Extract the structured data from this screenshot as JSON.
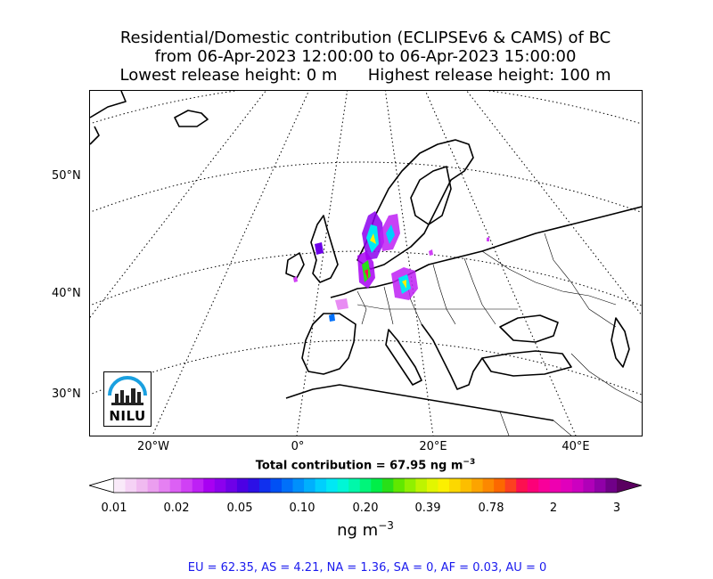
{
  "title": {
    "line1": "Residential/Domestic contribution (ECLIPSEv6 & CAMS) of BC",
    "line2": "from 06-Apr-2023 12:00:00 to 06-Apr-2023 15:00:00",
    "line3": "Lowest release height: 0 m      Highest release height: 100 m"
  },
  "map": {
    "lat_labels": [
      "50°N",
      "40°N",
      "30°N"
    ],
    "lon_labels": [
      "20°W",
      "0°",
      "20°E",
      "40°E"
    ],
    "logo_text": "NILU",
    "coastline_color": "#000000",
    "graticule_style": "dotted"
  },
  "total": {
    "label": "Total contribution = 67.95 ng m",
    "unit_exp": "−3"
  },
  "colorbar": {
    "ticks": [
      "0.01",
      "0.02",
      "0.05",
      "0.10",
      "0.20",
      "0.39",
      "0.78",
      "2",
      "3"
    ],
    "colors": [
      "#f9eaf9",
      "#f5d2f5",
      "#f0baf0",
      "#eb9eef",
      "#e580f2",
      "#dc60f4",
      "#d040f5",
      "#be20f5",
      "#a800f2",
      "#8c00ee",
      "#6e00e8",
      "#4c00e4",
      "#2c10e6",
      "#1030ee",
      "#0050f5",
      "#0070fa",
      "#0090fc",
      "#00b0fd",
      "#00cffd",
      "#00e8f4",
      "#00f6d6",
      "#00f8aa",
      "#00f57a",
      "#00ee48",
      "#28e018",
      "#60e800",
      "#90f000",
      "#bef400",
      "#e2f600",
      "#fcf000",
      "#fcd800",
      "#fcbe00",
      "#fca400",
      "#fc8800",
      "#fc6800",
      "#fc4020",
      "#fc1050",
      "#fc0078",
      "#f8009a",
      "#ee00b0",
      "#e000bc",
      "#cc00c0",
      "#b000b8",
      "#9000a8",
      "#700088"
    ],
    "left_extend_color": "#ffffff",
    "right_extend_color": "#5a0060"
  },
  "units": {
    "text": "ng m",
    "exp": "−3"
  },
  "footer": {
    "text": "EU = 62.35,  AS = 4.21,  NA = 1.36,  SA = 0,  AF = 0.03,  AU = 0"
  }
}
